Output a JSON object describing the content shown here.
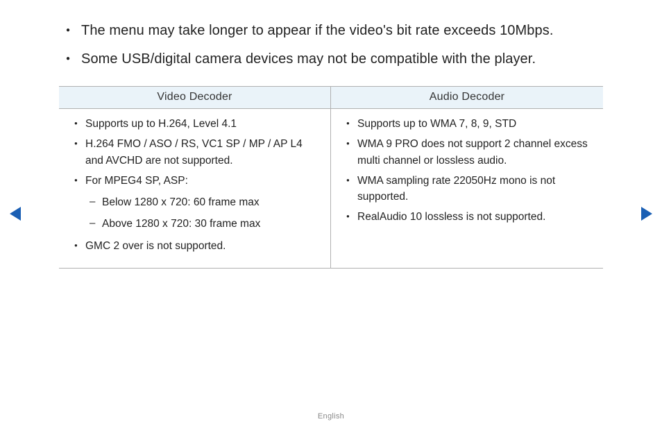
{
  "topBullets": [
    "The menu may take longer to appear if the video's bit rate exceeds 10Mbps.",
    "Some USB/digital camera devices may not be compatible with the player."
  ],
  "videoDecoder": {
    "header": "Video Decoder",
    "items": [
      "Supports up to H.264, Level 4.1",
      "H.264 FMO / ASO / RS, VC1 SP / MP / AP L4 and AVCHD are not supported.",
      "For MPEG4 SP, ASP:",
      "GMC 2 over is not supported."
    ],
    "mpeg4Sub": [
      "Below 1280 x 720: 60 frame max",
      "Above 1280 x 720: 30 frame max"
    ]
  },
  "audioDecoder": {
    "header": "Audio Decoder",
    "items": [
      "Supports up to WMA 7, 8, 9, STD",
      "WMA 9 PRO does not support 2 channel excess multi channel or lossless audio.",
      "WMA sampling rate 22050Hz mono is not supported.",
      "RealAudio 10 lossless is not supported."
    ]
  },
  "footer": "English",
  "colors": {
    "headerBg": "#eaf3f9",
    "border": "#b0b0b0",
    "arrow": "#1a5fb4",
    "text": "#222222",
    "footerText": "#888888"
  }
}
